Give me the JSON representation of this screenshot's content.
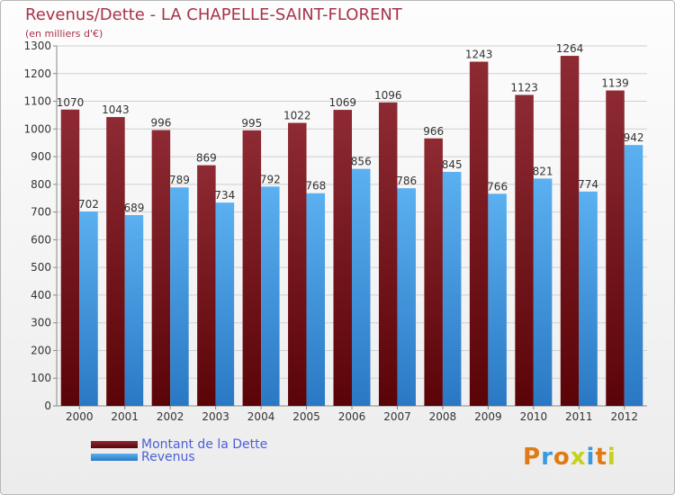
{
  "chart_data": {
    "type": "bar",
    "title": "Revenus/Dette - LA CHAPELLE-SAINT-FLORENT",
    "subtitle": "(en milliers d'€)",
    "categories": [
      "2000",
      "2001",
      "2002",
      "2003",
      "2004",
      "2005",
      "2006",
      "2007",
      "2008",
      "2009",
      "2010",
      "2011",
      "2012"
    ],
    "series": [
      {
        "name": "Montant de la Dette",
        "color": "#8c1f24",
        "values": [
          1070,
          1043,
          996,
          869,
          995,
          1022,
          1069,
          1096,
          966,
          1243,
          1123,
          1264,
          1139
        ]
      },
      {
        "name": "Revenus",
        "color": "#3d9ae6",
        "values": [
          702,
          689,
          789,
          734,
          792,
          768,
          856,
          786,
          845,
          766,
          821,
          774,
          942
        ]
      }
    ],
    "ylim": [
      0,
      1300
    ],
    "yticks": [
      0,
      100,
      200,
      300,
      400,
      500,
      600,
      700,
      800,
      900,
      1000,
      1100,
      1200,
      1300
    ],
    "grid": true,
    "legend": "bottom-left"
  },
  "logo": {
    "text": "Proxiti"
  }
}
